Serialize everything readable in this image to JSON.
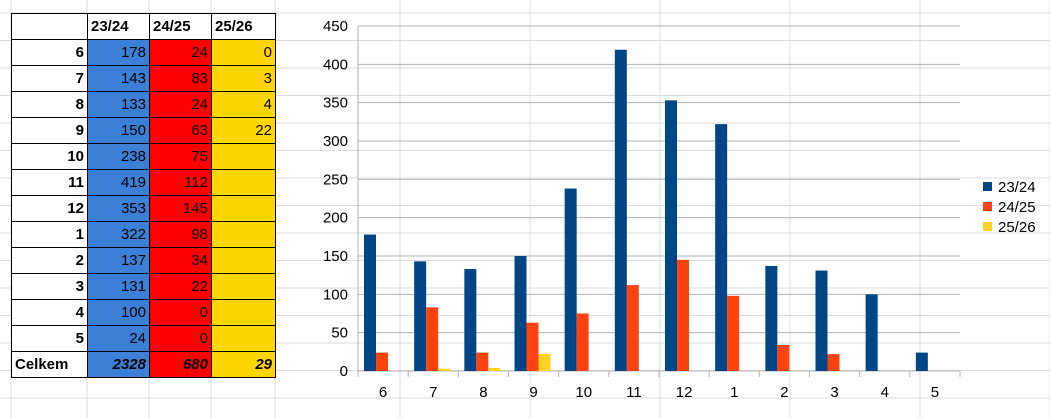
{
  "sheet": {
    "headers": [
      "23/24",
      "24/25",
      "25/26"
    ],
    "rows": [
      {
        "label": "6",
        "v1": "178",
        "v2": "24",
        "v3": "0"
      },
      {
        "label": "7",
        "v1": "143",
        "v2": "83",
        "v3": "3"
      },
      {
        "label": "8",
        "v1": "133",
        "v2": "24",
        "v3": "4"
      },
      {
        "label": "9",
        "v1": "150",
        "v2": "63",
        "v3": "22"
      },
      {
        "label": "10",
        "v1": "238",
        "v2": "75",
        "v3": ""
      },
      {
        "label": "11",
        "v1": "419",
        "v2": "112",
        "v3": ""
      },
      {
        "label": "12",
        "v1": "353",
        "v2": "145",
        "v3": ""
      },
      {
        "label": "1",
        "v1": "322",
        "v2": "98",
        "v3": ""
      },
      {
        "label": "2",
        "v1": "137",
        "v2": "34",
        "v3": ""
      },
      {
        "label": "3",
        "v1": "131",
        "v2": "22",
        "v3": ""
      },
      {
        "label": "4",
        "v1": "100",
        "v2": "0",
        "v3": ""
      },
      {
        "label": "5",
        "v1": "24",
        "v2": "0",
        "v3": ""
      }
    ],
    "total": {
      "label": "Celkem",
      "v1": "2328",
      "v2": "680",
      "v3": "29"
    },
    "colors": {
      "col1": "#3c7fd6",
      "col2": "#ff0000",
      "col3": "#ffd500"
    }
  },
  "chart_data": {
    "type": "bar",
    "categories": [
      "6",
      "7",
      "8",
      "9",
      "10",
      "11",
      "12",
      "1",
      "2",
      "3",
      "4",
      "5"
    ],
    "series": [
      {
        "name": "23/24",
        "color": "#004586",
        "values": [
          178,
          143,
          133,
          150,
          238,
          419,
          353,
          322,
          137,
          131,
          100,
          24
        ]
      },
      {
        "name": "24/25",
        "color": "#ff420e",
        "values": [
          24,
          83,
          24,
          63,
          75,
          112,
          145,
          98,
          34,
          22,
          0,
          0
        ]
      },
      {
        "name": "25/26",
        "color": "#ffd320",
        "values": [
          0,
          3,
          4,
          22,
          null,
          null,
          null,
          null,
          null,
          null,
          null,
          null
        ]
      }
    ],
    "title": "",
    "xlabel": "",
    "ylabel": "",
    "ylim": [
      0,
      450
    ],
    "yticks": [
      "0",
      "50",
      "100",
      "150",
      "200",
      "250",
      "300",
      "350",
      "400",
      "450"
    ],
    "grid": true,
    "legend": "right"
  }
}
